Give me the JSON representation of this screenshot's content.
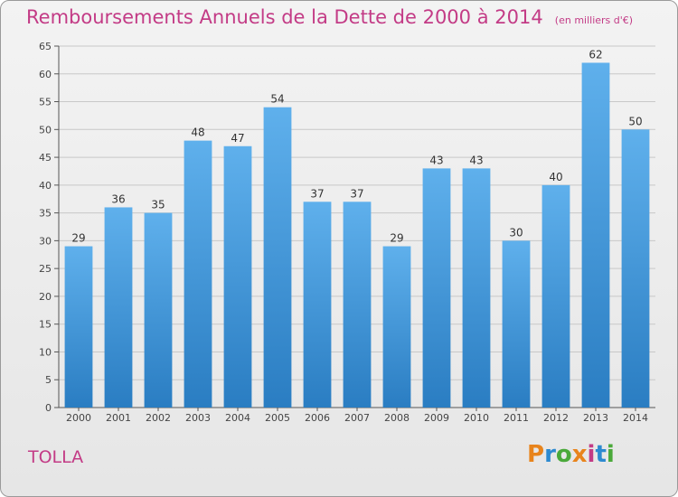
{
  "header": {
    "title": "Remboursements Annuels de la Dette de 2000 à 2014",
    "subtitle": "(en milliers d'€)"
  },
  "footer": {
    "commune": "TOLLA",
    "logo_text": "Proxiti"
  },
  "colors": {
    "title": "#c33b86",
    "bar_light": "#5fb0ec",
    "bar_dark": "#2a7dc2",
    "grid": "#c8c8c8",
    "logo_letters": [
      "#e8841c",
      "#2d8ad0",
      "#4aa93a",
      "#e8841c",
      "#c33b86",
      "#2d8ad0",
      "#4aa93a"
    ]
  },
  "chart_data": {
    "type": "bar",
    "title": "Remboursements Annuels de la Dette de 2000 à 2014",
    "subtitle": "(en milliers d'€)",
    "xlabel": "",
    "ylabel": "",
    "categories": [
      "2000",
      "2001",
      "2002",
      "2003",
      "2004",
      "2005",
      "2006",
      "2007",
      "2008",
      "2009",
      "2010",
      "2011",
      "2012",
      "2013",
      "2014"
    ],
    "values": [
      29,
      36,
      35,
      48,
      47,
      54,
      37,
      37,
      29,
      43,
      43,
      30,
      40,
      62,
      50
    ],
    "ylim": [
      0,
      65
    ],
    "yticks": [
      0,
      5,
      10,
      15,
      20,
      25,
      30,
      35,
      40,
      45,
      50,
      55,
      60,
      65
    ],
    "grid": true,
    "data_labels": true
  }
}
